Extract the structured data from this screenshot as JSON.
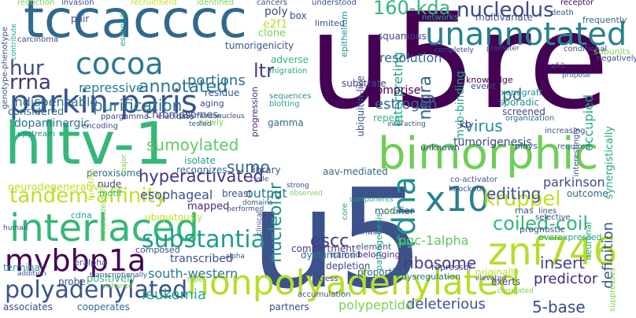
{
  "word_cloud": {
    "words": [
      {
        "text": "u5re",
        "color": "#440154"
      },
      {
        "text": "u5",
        "color": "#3b528b"
      },
      {
        "text": "tccacccc",
        "color": "#31688e"
      },
      {
        "text": "hltv-1",
        "color": "#35b779"
      },
      {
        "text": "bimorphic",
        "color": "#6ece58"
      },
      {
        "text": "nonpolyadenylated",
        "color": "#b5de2b"
      },
      {
        "text": "parkin-paris",
        "color": "#3b528b"
      },
      {
        "text": "interlaced",
        "color": "#35b779"
      },
      {
        "text": "unannotated",
        "color": "#26828e"
      },
      {
        "text": "znf746",
        "color": "#b5de2b"
      },
      {
        "text": "mybbp1a",
        "color": "#440154"
      },
      {
        "text": "rdna",
        "color": "#21918c"
      },
      {
        "text": "cocoa",
        "color": "#2a788e"
      },
      {
        "text": "x10",
        "color": "#26828e"
      },
      {
        "text": "nucleolus",
        "color": "#3e4989"
      },
      {
        "text": "160-kda",
        "color": "#35b779"
      },
      {
        "text": "polyadenylated",
        "color": "#3b528b"
      },
      {
        "text": "substantia",
        "color": "#1f9e89"
      },
      {
        "text": "tandem-affinity",
        "color": "#bddf26"
      },
      {
        "text": "kruppel",
        "color": "#bddf26"
      },
      {
        "text": "hur",
        "color": "#3e4989"
      },
      {
        "text": "rrna",
        "color": "#46337e"
      },
      {
        "text": "coiled-coil",
        "color": "#35b779"
      },
      {
        "text": "annotated",
        "color": "#2a788e"
      },
      {
        "text": "hyperactivated",
        "color": "#46327e"
      },
      {
        "text": "purification",
        "color": "#2a788e"
      },
      {
        "text": "sumoylated",
        "color": "#5ec962"
      },
      {
        "text": "nucleolar",
        "color": "#21918c"
      },
      {
        "text": "editing",
        "color": "#3b528b"
      },
      {
        "text": "ltr",
        "color": "#443a83"
      },
      {
        "text": "sumo",
        "color": "#31688e"
      },
      {
        "text": "escc",
        "color": "#443983"
      },
      {
        "text": "ribosome",
        "color": "#443983"
      },
      {
        "text": "insert",
        "color": "#414487"
      },
      {
        "text": "virus",
        "color": "#21918c"
      },
      {
        "text": "nigra",
        "color": "#31688e"
      },
      {
        "text": "pd",
        "color": "#31688e"
      },
      {
        "text": "portions",
        "color": "#2c728e"
      },
      {
        "text": "interpreting",
        "color": "#20a486"
      },
      {
        "text": "indispensable",
        "color": "#2c728e"
      },
      {
        "text": "repressive",
        "color": "#2a788e"
      },
      {
        "text": "estrogen",
        "color": "#31688e"
      },
      {
        "text": "esophageal",
        "color": "#3b528b"
      },
      {
        "text": "leukemia",
        "color": "#22a884"
      },
      {
        "text": "5-base",
        "color": "#3e4989"
      },
      {
        "text": "deleterious",
        "color": "#3b528b"
      },
      {
        "text": "polypeptide",
        "color": "#7ad151"
      },
      {
        "text": "predictor",
        "color": "#482878"
      },
      {
        "text": "definition",
        "color": "#3b528b"
      },
      {
        "text": "parkinson",
        "color": "#3e4989"
      },
      {
        "text": "occupied",
        "color": "#22a884"
      },
      {
        "text": "tumorigenesis",
        "color": "#3e4989"
      },
      {
        "text": "pgc-1alpha",
        "color": "#5ec962"
      },
      {
        "text": "south-western",
        "color": "#2a788e"
      },
      {
        "text": "dopaminergic",
        "color": "#2c728e"
      },
      {
        "text": "resolution",
        "color": "#31688e"
      },
      {
        "text": "myb-binding",
        "color": "#20a486"
      },
      {
        "text": "output",
        "color": "#2a788e"
      },
      {
        "text": "transcribed",
        "color": "#3b528b"
      },
      {
        "text": "comprise",
        "color": "#440154"
      },
      {
        "text": "considered",
        "color": "#31688e"
      },
      {
        "text": "chromosomes",
        "color": "#3e4989"
      },
      {
        "text": "mapped",
        "color": "#482878"
      },
      {
        "text": "breast",
        "color": "#3b528b"
      },
      {
        "text": "positively",
        "color": "#35b779"
      },
      {
        "text": "poly",
        "color": "#3e4989"
      },
      {
        "text": "clone",
        "color": "#7ad151"
      },
      {
        "text": "e2f1",
        "color": "#bddf26"
      },
      {
        "text": "adverse",
        "color": "#35b779"
      },
      {
        "text": "tumorigenicity",
        "color": "#3b528b"
      },
      {
        "text": "neurodegenerative",
        "color": "#bddf26"
      },
      {
        "text": "compartment",
        "color": "#443983"
      },
      {
        "text": "dysfunction",
        "color": "#2c728e"
      },
      {
        "text": "proportion",
        "color": "#31688e"
      },
      {
        "text": "associates",
        "color": "#3e4989"
      },
      {
        "text": "cooperates",
        "color": "#31688e"
      },
      {
        "text": "partners",
        "color": "#3e4989"
      },
      {
        "text": "probe",
        "color": "#3b528b"
      },
      {
        "text": "terminal",
        "color": "#21918c"
      },
      {
        "text": "screened",
        "color": "#414487"
      },
      {
        "text": "sporadic",
        "color": "#21918c"
      },
      {
        "text": "xenograft",
        "color": "#21918c"
      },
      {
        "text": "knowledge",
        "color": "#440154"
      },
      {
        "text": "event",
        "color": "#3e4989"
      },
      {
        "text": "synergistically",
        "color": "#22a884"
      },
      {
        "text": "organization",
        "color": "#31688e"
      },
      {
        "text": "kb",
        "color": "#482878"
      },
      {
        "text": "ubiquitously",
        "color": "#bddf26"
      },
      {
        "text": "isolate",
        "color": "#20a486"
      },
      {
        "text": "recognizes",
        "color": "#31688e"
      },
      {
        "text": "nude",
        "color": "#3e4989"
      },
      {
        "text": "peroxisome",
        "color": "#2c728e"
      },
      {
        "text": "library",
        "color": "#3b528b"
      },
      {
        "text": "aav-mediated",
        "color": "#31688e"
      },
      {
        "text": "modifier",
        "color": "#3e4989"
      },
      {
        "text": "repeat",
        "color": "#35b779"
      },
      {
        "text": "gamma",
        "color": "#31688e"
      },
      {
        "text": "substrate",
        "color": "#3e4989"
      },
      {
        "text": "residue",
        "color": "#3b528b"
      },
      {
        "text": "aging",
        "color": "#3e4989"
      },
      {
        "text": "progression",
        "color": "#482878"
      },
      {
        "text": "depletion",
        "color": "#3e4989"
      },
      {
        "text": "named",
        "color": "#3e4989"
      },
      {
        "text": "belonging",
        "color": "#482878"
      },
      {
        "text": "originally",
        "color": "#bddf26"
      },
      {
        "text": "exerts",
        "color": "#3e4989"
      },
      {
        "text": "outcome",
        "color": "#31688e"
      },
      {
        "text": "cdna",
        "color": "#20a486"
      },
      {
        "text": "composed",
        "color": "#3e4989"
      },
      {
        "text": "eralpha",
        "color": "#3b528b"
      },
      {
        "text": "dysregulation",
        "color": "#2c728e"
      },
      {
        "text": "repressor",
        "color": "#3e4989"
      },
      {
        "text": "element",
        "color": "#3b528b"
      },
      {
        "text": "co-activator",
        "color": "#3b528b"
      },
      {
        "text": "knockout",
        "color": "#3b528b"
      },
      {
        "text": "squamous",
        "color": "#414487"
      },
      {
        "text": "multivariate",
        "color": "#3e4989"
      },
      {
        "text": "networks",
        "color": "#20a486"
      },
      {
        "text": "pair",
        "color": "#3b528b"
      },
      {
        "text": "box",
        "color": "#3b528b"
      },
      {
        "text": "limited",
        "color": "#3b528b"
      },
      {
        "text": "migration",
        "color": "#20a486"
      },
      {
        "text": "sequences",
        "color": "#21918c"
      },
      {
        "text": "blotting",
        "color": "#20a486"
      },
      {
        "text": "newly",
        "color": "#7ad151"
      },
      {
        "text": "elucidate",
        "color": "#3b528b"
      },
      {
        "text": "ppargamma",
        "color": "#3e4989"
      },
      {
        "text": "upstream",
        "color": "#21918c"
      },
      {
        "text": "encoding",
        "color": "#3b528b"
      },
      {
        "text": "motif",
        "color": "#35b779"
      },
      {
        "text": "function",
        "color": "#bddf26"
      },
      {
        "text": "essential",
        "color": "#20a486"
      },
      {
        "text": "invasion",
        "color": "#3e4989"
      },
      {
        "text": "recruitment",
        "color": "#bddf26"
      },
      {
        "text": "identified",
        "color": "#7ad151"
      },
      {
        "text": "reduction",
        "color": "#7ad151"
      },
      {
        "text": "cancers",
        "color": "#3b528b"
      },
      {
        "text": "understood",
        "color": "#3b528b"
      },
      {
        "text": "receptor",
        "color": "#440154"
      },
      {
        "text": "death",
        "color": "#3b528b"
      },
      {
        "text": "frequently",
        "color": "#31688e"
      },
      {
        "text": "subunits",
        "color": "#7ad151"
      },
      {
        "text": "negatively",
        "color": "#3e4989"
      },
      {
        "text": "conditional",
        "color": "#3b528b"
      },
      {
        "text": "promoter",
        "color": "#3b528b"
      },
      {
        "text": "completely",
        "color": "#3e4989"
      },
      {
        "text": "propose",
        "color": "#3b528b"
      },
      {
        "text": "p53",
        "color": "#3b528b"
      },
      {
        "text": "epithelium",
        "color": "#21918c"
      },
      {
        "text": "ubiquitin-like",
        "color": "#3b528b"
      },
      {
        "text": "carcinoma",
        "color": "#3e4989"
      },
      {
        "text": "genotype-phenotype",
        "color": "#3b528b"
      },
      {
        "text": "contribute",
        "color": "#20a486"
      },
      {
        "text": "unknown",
        "color": "#3b528b"
      },
      {
        "text": "plays",
        "color": "#3b528b"
      },
      {
        "text": "required",
        "color": "#31688e"
      },
      {
        "text": "interestingly",
        "color": "#3b528b"
      },
      {
        "text": "increasing",
        "color": "#3b528b"
      },
      {
        "text": "rnas",
        "color": "#3b528b"
      },
      {
        "text": "lines",
        "color": "#3e4989"
      },
      {
        "text": "selective",
        "color": "#3e4989"
      },
      {
        "text": "prognostic",
        "color": "#3b528b"
      },
      {
        "text": "overexpressed",
        "color": "#20a486"
      },
      {
        "text": "neuronal",
        "color": "#20a486"
      },
      {
        "text": "suppresses",
        "color": "#7ad151"
      },
      {
        "text": "correlated",
        "color": "#7ad151"
      },
      {
        "text": "elevated",
        "color": "#3e4989"
      },
      {
        "text": "stress",
        "color": "#3e4989"
      },
      {
        "text": "accumulation",
        "color": "#3b528b"
      },
      {
        "text": "pathway",
        "color": "#3b528b"
      },
      {
        "text": "pathogenesis",
        "color": "#20a486"
      },
      {
        "text": "core",
        "color": "#20a486"
      },
      {
        "text": "components",
        "color": "#20a486"
      },
      {
        "text": "sites",
        "color": "#7ad151"
      },
      {
        "text": "clinical",
        "color": "#3b528b"
      },
      {
        "text": "alpha",
        "color": "#3b528b"
      },
      {
        "text": "human",
        "color": "#3e4989"
      },
      {
        "text": "addition",
        "color": "#3b528b"
      },
      {
        "text": "transcriptionally",
        "color": "#3b528b"
      },
      {
        "text": "type",
        "color": "#7ad151"
      },
      {
        "text": "enhance",
        "color": "#7ad151"
      },
      {
        "text": "independent",
        "color": "#7ad151"
      },
      {
        "text": "performed",
        "color": "#3b528b"
      },
      {
        "text": "observed",
        "color": "#7ad151"
      },
      {
        "text": "strong",
        "color": "#3e4989"
      },
      {
        "text": "domains",
        "color": "#3b528b"
      },
      {
        "text": "cycle",
        "color": "#3b528b"
      },
      {
        "text": "major",
        "color": "#7ad151"
      },
      {
        "text": "tested",
        "color": "#3b528b"
      },
      {
        "text": "polymerase",
        "color": "#3b528b"
      },
      {
        "text": "nucleus",
        "color": "#3e4989"
      },
      {
        "text": "interacting",
        "color": "#3b528b"
      }
    ]
  }
}
